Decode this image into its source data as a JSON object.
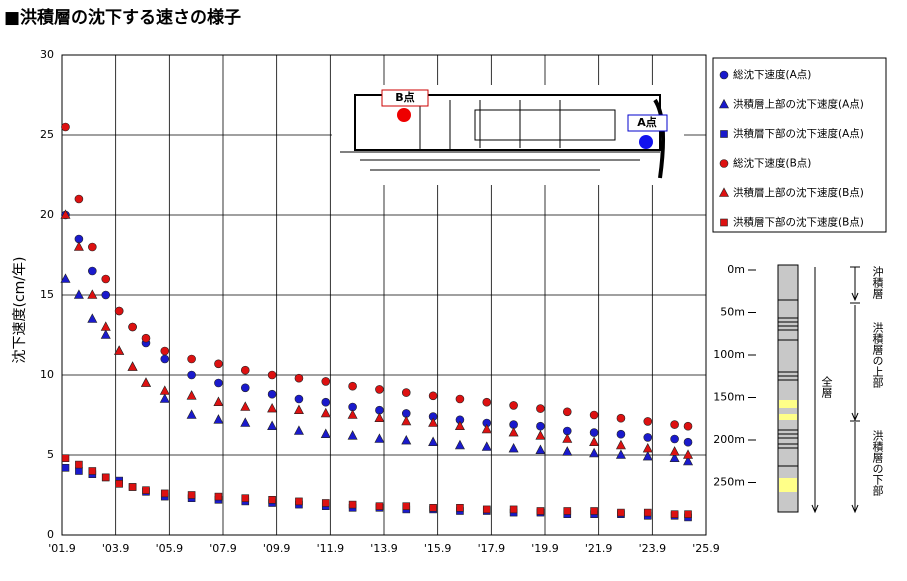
{
  "chart_data": {
    "type": "scatter",
    "title": "■洪積層の沈下する速さの様子",
    "y_label": "沈下速度(cm/年)",
    "xlim": [
      2001.67,
      2025.67
    ],
    "xticks": [
      {
        "value": 2001.67,
        "label": "'01.9"
      },
      {
        "value": 2003.67,
        "label": "'03.9"
      },
      {
        "value": 2005.67,
        "label": "'05.9"
      },
      {
        "value": 2007.67,
        "label": "'07.9"
      },
      {
        "value": 2009.67,
        "label": "'09.9"
      },
      {
        "value": 2011.67,
        "label": "'11.9"
      },
      {
        "value": 2013.67,
        "label": "'13.9"
      },
      {
        "value": 2015.67,
        "label": "'15.9"
      },
      {
        "value": 2017.67,
        "label": "'17.9"
      },
      {
        "value": 2019.67,
        "label": "'19.9"
      },
      {
        "value": 2021.67,
        "label": "'21.9"
      },
      {
        "value": 2023.67,
        "label": "'23.9"
      },
      {
        "value": 2025.67,
        "label": "'25.9"
      }
    ],
    "ylim": [
      0,
      30
    ],
    "yticks": [
      0,
      5,
      10,
      15,
      20,
      25,
      30
    ],
    "grid": true,
    "legend": "top-right",
    "x": [
      2001.8,
      2002.3,
      2002.8,
      2003.3,
      2003.8,
      2004.3,
      2004.8,
      2005.5,
      2006.5,
      2007.5,
      2008.5,
      2009.5,
      2010.5,
      2011.5,
      2012.5,
      2013.5,
      2014.5,
      2015.5,
      2016.5,
      2017.5,
      2018.5,
      2019.5,
      2020.5,
      2021.5,
      2022.5,
      2023.5,
      2024.5,
      2025.0
    ],
    "series": [
      {
        "name": "総沈下速度(A点)",
        "color": "#1a1acc",
        "marker": "circle",
        "values": [
          20,
          18.5,
          16.5,
          15,
          14,
          13,
          12,
          11,
          10,
          9.5,
          9.2,
          8.8,
          8.5,
          8.3,
          8,
          7.8,
          7.6,
          7.4,
          7.2,
          7,
          6.9,
          6.8,
          6.5,
          6.4,
          6.3,
          6.1,
          6,
          5.8
        ]
      },
      {
        "name": "洪積層上部の沈下速度(A点)",
        "color": "#1a1acc",
        "marker": "triangle",
        "values": [
          16,
          15,
          13.5,
          12.5,
          11.5,
          10.5,
          9.5,
          8.5,
          7.5,
          7.2,
          7,
          6.8,
          6.5,
          6.3,
          6.2,
          6,
          5.9,
          5.8,
          5.6,
          5.5,
          5.4,
          5.3,
          5.2,
          5.1,
          5,
          4.9,
          4.8,
          4.6
        ]
      },
      {
        "name": "洪積層下部の沈下速度(A点)",
        "color": "#1a1acc",
        "marker": "square",
        "values": [
          4.2,
          4.0,
          3.8,
          3.6,
          3.4,
          3.0,
          2.7,
          2.4,
          2.3,
          2.2,
          2.1,
          2.0,
          1.9,
          1.8,
          1.7,
          1.7,
          1.6,
          1.6,
          1.5,
          1.5,
          1.4,
          1.4,
          1.3,
          1.3,
          1.3,
          1.2,
          1.2,
          1.1
        ]
      },
      {
        "name": "総沈下速度(B点)",
        "color": "#dd1111",
        "marker": "circle",
        "values": [
          25.5,
          21,
          18,
          16,
          14,
          13,
          12.3,
          11.5,
          11,
          10.7,
          10.3,
          10,
          9.8,
          9.6,
          9.3,
          9.1,
          8.9,
          8.7,
          8.5,
          8.3,
          8.1,
          7.9,
          7.7,
          7.5,
          7.3,
          7.1,
          6.9,
          6.8
        ]
      },
      {
        "name": "洪積層上部の沈下速度(B点)",
        "color": "#dd1111",
        "marker": "triangle",
        "values": [
          20,
          18,
          15,
          13,
          11.5,
          10.5,
          9.5,
          9,
          8.7,
          8.3,
          8,
          7.9,
          7.8,
          7.6,
          7.5,
          7.3,
          7.1,
          7,
          6.8,
          6.6,
          6.4,
          6.2,
          6,
          5.8,
          5.6,
          5.4,
          5.2,
          5
        ]
      },
      {
        "name": "洪積層下部の沈下速度(B点)",
        "color": "#dd1111",
        "marker": "square",
        "values": [
          4.8,
          4.4,
          4.0,
          3.6,
          3.2,
          3.0,
          2.8,
          2.6,
          2.5,
          2.4,
          2.3,
          2.2,
          2.1,
          2.0,
          1.9,
          1.8,
          1.8,
          1.7,
          1.7,
          1.6,
          1.6,
          1.5,
          1.5,
          1.5,
          1.4,
          1.4,
          1.3,
          1.3
        ]
      }
    ],
    "inset_labels": [
      "B点",
      "A点"
    ],
    "column": {
      "depth_labels": [
        "0m",
        "50m",
        "100m",
        "150m",
        "200m",
        "250m"
      ],
      "all_layers": "全層",
      "layers": [
        "沖積層",
        "洪積層の上部",
        "洪積層の下部"
      ]
    }
  }
}
